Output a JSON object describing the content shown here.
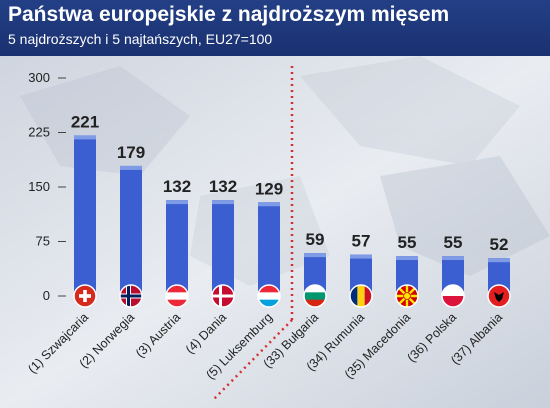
{
  "header": {
    "title": "Państwa europejskie z najdroższym mięsem",
    "subtitle": "5 najdroższych i 5 najtańszych, EU27=100"
  },
  "chart_data": {
    "type": "bar",
    "title": "Państwa europejskie z najdroższym mięsem",
    "subtitle": "5 najdroższych i 5 najtańszych, EU27=100",
    "categories": [
      "(1) Szwajcaria",
      "(2) Norwegia",
      "(3) Austria",
      "(4) Dania",
      "(5) Luksemburg",
      "(33) Bułgaria",
      "(34) Rumunia",
      "(35) Macedonia",
      "(36) Polska",
      "(37) Albania"
    ],
    "values": [
      221,
      179,
      132,
      132,
      129,
      59,
      57,
      55,
      55,
      52
    ],
    "flags": [
      "ch",
      "no",
      "at",
      "dk",
      "lu",
      "bg",
      "ro",
      "mk",
      "pl",
      "al"
    ],
    "ylim": [
      0,
      300
    ],
    "yticks": [
      0,
      75,
      150,
      225,
      300
    ],
    "xlabel": "",
    "ylabel": "",
    "grid": false,
    "legend": "none",
    "divider_after_index": 4,
    "colors": {
      "bar": "#3b5fd0",
      "bar_top": "#7f9be6",
      "label": "#222222",
      "divider": "#d32f2f"
    }
  }
}
